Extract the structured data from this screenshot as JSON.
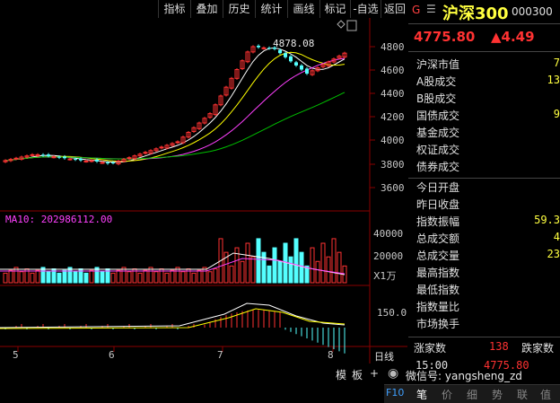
{
  "toolbar": {
    "items": [
      "指标",
      "叠加",
      "历史",
      "统计",
      "画线",
      "标记",
      "-自选",
      "返回"
    ]
  },
  "chart": {
    "price_ticks": [
      "4800",
      "4600",
      "4400",
      "4200",
      "4000",
      "3800",
      "3600"
    ],
    "high_label": "4878.08",
    "ma10_label": "MA10: 202986112.00",
    "volume_ticks": [
      "40000",
      "20000"
    ],
    "volume_unit": "X1万",
    "macd_tick": "150.0",
    "month_labels": [
      "5",
      "6",
      "7",
      "8"
    ],
    "bottom_tabs": [
      "日线",
      "模",
      "板"
    ],
    "colors": {
      "up": "#ff3232",
      "down": "#54ffff",
      "ma5": "#ffffff",
      "ma10": "#ffff00",
      "ma20": "#ff40ff",
      "ma60": "#00c000"
    }
  },
  "quote": {
    "market_flag": "G",
    "name": "沪深300",
    "code": "000300",
    "price": "4775.80",
    "change": "▲4.49"
  },
  "stats": [
    {
      "label": "沪深市值",
      "value": "7"
    },
    {
      "label": "A股成交",
      "value": "13"
    },
    {
      "label": "B股成交",
      "value": ""
    },
    {
      "label": "国债成交",
      "value": "9"
    },
    {
      "label": "基金成交",
      "value": ""
    },
    {
      "label": "权证成交",
      "value": ""
    },
    {
      "label": "债券成交",
      "value": ""
    },
    {
      "label": "今日开盘",
      "value": ""
    },
    {
      "label": "昨日收盘",
      "value": ""
    },
    {
      "label": "指数振幅",
      "value": "59.3"
    },
    {
      "label": "总成交额",
      "value": "4"
    },
    {
      "label": "总成交量",
      "value": "23"
    },
    {
      "label": "最高指数",
      "value": ""
    },
    {
      "label": "最低指数",
      "value": ""
    },
    {
      "label": "指数量比",
      "value": ""
    },
    {
      "label": "市场换手",
      "value": ""
    }
  ],
  "breadth": {
    "up_label": "涨家数",
    "up_value": "138",
    "down_label": "跌家数"
  },
  "tick": {
    "time": "15:00",
    "price": "4775.80"
  },
  "bottom_bar": {
    "left": "F10",
    "tabs": [
      "笔",
      "价",
      "细",
      "势",
      "联",
      "值"
    ]
  },
  "watermark": "微信号: yangsheng_zd"
}
